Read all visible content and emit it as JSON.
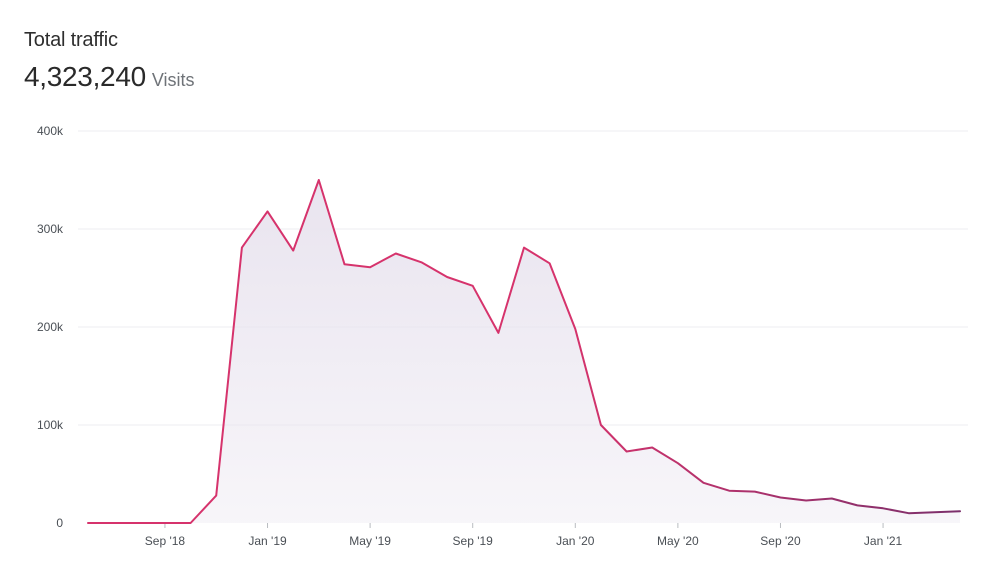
{
  "header": {
    "title": "Total traffic",
    "total_value": "4,323,240",
    "total_unit": "Visits"
  },
  "colors": {
    "line_start": "#d6336c",
    "line_end": "#7b2f6b",
    "area_fill": "#e9e4ef",
    "grid": "#ececf0"
  },
  "chart_data": {
    "type": "area",
    "title": "",
    "xlabel": "",
    "ylabel": "",
    "grid": true,
    "legend": "none",
    "ylim": [
      0,
      400000
    ],
    "y_ticks": [
      {
        "value": 0,
        "label": "0"
      },
      {
        "value": 100000,
        "label": "100k"
      },
      {
        "value": 200000,
        "label": "200k"
      },
      {
        "value": 300000,
        "label": "300k"
      },
      {
        "value": 400000,
        "label": "400k"
      }
    ],
    "x_ticks": [
      {
        "date": "2018-09",
        "label": "Sep '18"
      },
      {
        "date": "2019-01",
        "label": "Jan '19"
      },
      {
        "date": "2019-05",
        "label": "May '19"
      },
      {
        "date": "2019-09",
        "label": "Sep '19"
      },
      {
        "date": "2020-01",
        "label": "Jan '20"
      },
      {
        "date": "2020-05",
        "label": "May '20"
      },
      {
        "date": "2020-09",
        "label": "Sep '20"
      },
      {
        "date": "2021-01",
        "label": "Jan '21"
      }
    ],
    "xlim": [
      "2018-06",
      "2021-04"
    ],
    "series": [
      {
        "values": [
          {
            "x": "2018-06",
            "y": 0
          },
          {
            "x": "2018-07",
            "y": 0
          },
          {
            "x": "2018-08",
            "y": 0
          },
          {
            "x": "2018-09",
            "y": 0
          },
          {
            "x": "2018-10",
            "y": 0
          },
          {
            "x": "2018-11",
            "y": 28000
          },
          {
            "x": "2018-12",
            "y": 281000
          },
          {
            "x": "2019-01",
            "y": 318000
          },
          {
            "x": "2019-02",
            "y": 278000
          },
          {
            "x": "2019-03",
            "y": 350000
          },
          {
            "x": "2019-04",
            "y": 264000
          },
          {
            "x": "2019-05",
            "y": 261000
          },
          {
            "x": "2019-06",
            "y": 275000
          },
          {
            "x": "2019-07",
            "y": 266000
          },
          {
            "x": "2019-08",
            "y": 251000
          },
          {
            "x": "2019-09",
            "y": 242000
          },
          {
            "x": "2019-10",
            "y": 194000
          },
          {
            "x": "2019-11",
            "y": 281000
          },
          {
            "x": "2019-12",
            "y": 265000
          },
          {
            "x": "2020-01",
            "y": 198000
          },
          {
            "x": "2020-02",
            "y": 100000
          },
          {
            "x": "2020-03",
            "y": 73000
          },
          {
            "x": "2020-04",
            "y": 77000
          },
          {
            "x": "2020-05",
            "y": 61000
          },
          {
            "x": "2020-06",
            "y": 41000
          },
          {
            "x": "2020-07",
            "y": 33000
          },
          {
            "x": "2020-08",
            "y": 32000
          },
          {
            "x": "2020-09",
            "y": 26000
          },
          {
            "x": "2020-10",
            "y": 23000
          },
          {
            "x": "2020-11",
            "y": 25000
          },
          {
            "x": "2020-12",
            "y": 18000
          },
          {
            "x": "2021-01",
            "y": 15000
          },
          {
            "x": "2021-02",
            "y": 10000
          },
          {
            "x": "2021-03",
            "y": 11000
          },
          {
            "x": "2021-04",
            "y": 12000
          }
        ]
      }
    ]
  }
}
